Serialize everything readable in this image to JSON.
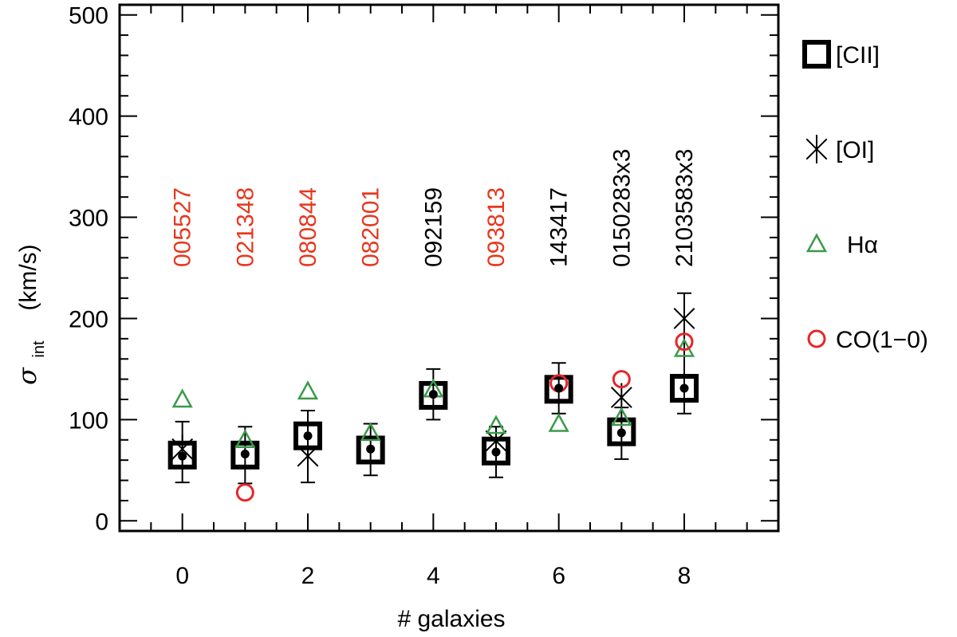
{
  "chart_data": {
    "type": "scatter",
    "xlabel": "# galaxies",
    "ylabel_main": "σ",
    "ylabel_sub": "int",
    "ylabel_units": "(km/s)",
    "xlim": [
      -1,
      9.5
    ],
    "ylim": [
      -10,
      510
    ],
    "xticks_major": [
      0,
      2,
      4,
      6,
      8
    ],
    "xticks_minor": [
      -0.5,
      0.5,
      1,
      1.5,
      2.5,
      3,
      3.5,
      4.5,
      5,
      5.5,
      6.5,
      7,
      7.5,
      8.5,
      9
    ],
    "yticks_major": [
      0,
      100,
      200,
      300,
      400,
      500
    ],
    "yticks_minor": [
      20,
      40,
      60,
      80,
      120,
      140,
      160,
      180,
      220,
      240,
      260,
      280,
      320,
      340,
      360,
      380,
      420,
      440,
      460,
      480
    ],
    "galaxy_labels": [
      {
        "x": 0,
        "text": "005527",
        "color": "#e8361e"
      },
      {
        "x": 1,
        "text": "021348",
        "color": "#e8361e"
      },
      {
        "x": 2,
        "text": "080844",
        "color": "#e8361e"
      },
      {
        "x": 3,
        "text": "082001",
        "color": "#e8361e"
      },
      {
        "x": 4,
        "text": "092159",
        "color": "#000000"
      },
      {
        "x": 5,
        "text": "093813",
        "color": "#e8361e"
      },
      {
        "x": 6,
        "text": "143417",
        "color": "#000000"
      },
      {
        "x": 7,
        "text": "0150283x3",
        "color": "#000000"
      },
      {
        "x": 8,
        "text": "2103583x3",
        "color": "#000000"
      }
    ],
    "series": [
      {
        "name": "[CII]",
        "marker": "square",
        "color": "#000000",
        "points": [
          {
            "x": 0,
            "y": 65
          },
          {
            "x": 1,
            "y": 65
          },
          {
            "x": 2,
            "y": 84
          },
          {
            "x": 3,
            "y": 70
          },
          {
            "x": 4,
            "y": 124
          },
          {
            "x": 5,
            "y": 69
          },
          {
            "x": 6,
            "y": 130
          },
          {
            "x": 7,
            "y": 88
          },
          {
            "x": 8,
            "y": 131
          }
        ]
      },
      {
        "name": "[OI]",
        "marker": "asterisk",
        "color": "#000000",
        "points": [
          {
            "x": 0,
            "y": 71
          },
          {
            "x": 2,
            "y": 64
          },
          {
            "x": 5,
            "y": 79
          },
          {
            "x": 7,
            "y": 122
          },
          {
            "x": 8,
            "y": 200
          }
        ]
      },
      {
        "name": "Hα",
        "marker": "triangle",
        "color": "#3a9a4a",
        "points": [
          {
            "x": 0,
            "y": 120
          },
          {
            "x": 1,
            "y": 80
          },
          {
            "x": 2,
            "y": 128
          },
          {
            "x": 3,
            "y": 87
          },
          {
            "x": 4,
            "y": 130
          },
          {
            "x": 5,
            "y": 94
          },
          {
            "x": 6,
            "y": 96
          },
          {
            "x": 7,
            "y": 102
          },
          {
            "x": 8,
            "y": 170
          }
        ]
      },
      {
        "name": "CO(1−0)",
        "marker": "circle",
        "color": "#e8252a",
        "points": [
          {
            "x": 1,
            "y": 28
          },
          {
            "x": 6,
            "y": 136
          },
          {
            "x": 7,
            "y": 140
          },
          {
            "x": 8,
            "y": 177
          }
        ]
      },
      {
        "name": "mean",
        "marker": "dot",
        "color": "#000000",
        "points": [
          {
            "x": 0,
            "y": 64,
            "err_lo": 38,
            "err_hi": 98
          },
          {
            "x": 1,
            "y": 66,
            "err_lo": 37,
            "err_hi": 93
          },
          {
            "x": 2,
            "y": 84,
            "err_lo": 38,
            "err_hi": 109
          },
          {
            "x": 3,
            "y": 71,
            "err_lo": 45,
            "err_hi": 96
          },
          {
            "x": 4,
            "y": 125,
            "err_lo": 100,
            "err_hi": 150
          },
          {
            "x": 5,
            "y": 68,
            "err_lo": 43,
            "err_hi": 93
          },
          {
            "x": 6,
            "y": 131,
            "err_lo": 106,
            "err_hi": 156
          },
          {
            "x": 7,
            "y": 87,
            "err_lo": 61,
            "err_hi": 112
          },
          {
            "x": 8,
            "y": 131,
            "err_lo": 106,
            "err_hi": 225
          }
        ]
      }
    ],
    "legend": {
      "placement": "right",
      "entries": [
        {
          "label": "[CII]",
          "marker": "square",
          "color": "#000000"
        },
        {
          "label": "[OI]",
          "marker": "asterisk",
          "color": "#000000"
        },
        {
          "label": "Hα",
          "marker": "triangle",
          "color": "#3a9a4a"
        },
        {
          "label": "CO(1−0)",
          "marker": "circle",
          "color": "#e8252a"
        }
      ]
    }
  }
}
